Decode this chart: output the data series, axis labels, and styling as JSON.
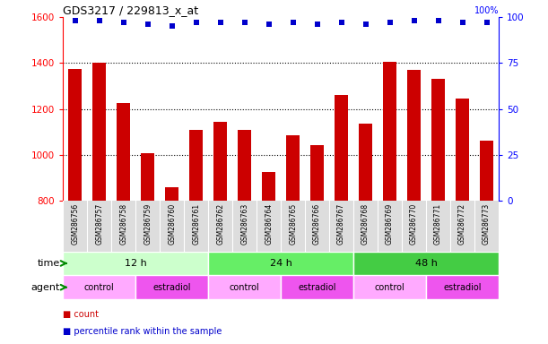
{
  "title": "GDS3217 / 229813_x_at",
  "samples": [
    "GSM286756",
    "GSM286757",
    "GSM286758",
    "GSM286759",
    "GSM286760",
    "GSM286761",
    "GSM286762",
    "GSM286763",
    "GSM286764",
    "GSM286765",
    "GSM286766",
    "GSM286767",
    "GSM286768",
    "GSM286769",
    "GSM286770",
    "GSM286771",
    "GSM286772",
    "GSM286773"
  ],
  "counts": [
    1375,
    1400,
    1225,
    1005,
    860,
    1110,
    1145,
    1110,
    925,
    1085,
    1040,
    1260,
    1135,
    1405,
    1370,
    1330,
    1245,
    1060
  ],
  "percentile_ranks": [
    98,
    98,
    97,
    96,
    95,
    97,
    97,
    97,
    96,
    97,
    96,
    97,
    96,
    97,
    98,
    98,
    97,
    97
  ],
  "ylim_left": [
    800,
    1600
  ],
  "ylim_right": [
    0,
    100
  ],
  "yticks_left": [
    800,
    1000,
    1200,
    1400,
    1600
  ],
  "yticks_right": [
    0,
    25,
    50,
    75,
    100
  ],
  "bar_color": "#CC0000",
  "dot_color": "#0000CC",
  "time_groups": [
    {
      "label": "12 h",
      "start": 0,
      "end": 6,
      "color": "#CCFFCC"
    },
    {
      "label": "24 h",
      "start": 6,
      "end": 12,
      "color": "#66EE66"
    },
    {
      "label": "48 h",
      "start": 12,
      "end": 18,
      "color": "#44CC44"
    }
  ],
  "agent_groups": [
    {
      "label": "control",
      "start": 0,
      "end": 3,
      "color": "#FFAAFF"
    },
    {
      "label": "estradiol",
      "start": 3,
      "end": 6,
      "color": "#EE55EE"
    },
    {
      "label": "control",
      "start": 6,
      "end": 9,
      "color": "#FFAAFF"
    },
    {
      "label": "estradiol",
      "start": 9,
      "end": 12,
      "color": "#EE55EE"
    },
    {
      "label": "control",
      "start": 12,
      "end": 15,
      "color": "#FFAAFF"
    },
    {
      "label": "estradiol",
      "start": 15,
      "end": 18,
      "color": "#EE55EE"
    }
  ],
  "legend_items": [
    {
      "label": "count",
      "color": "#CC0000"
    },
    {
      "label": "percentile rank within the sample",
      "color": "#0000CC"
    }
  ],
  "xtick_bg": "#DDDDDD",
  "arrow_color": "#008800"
}
